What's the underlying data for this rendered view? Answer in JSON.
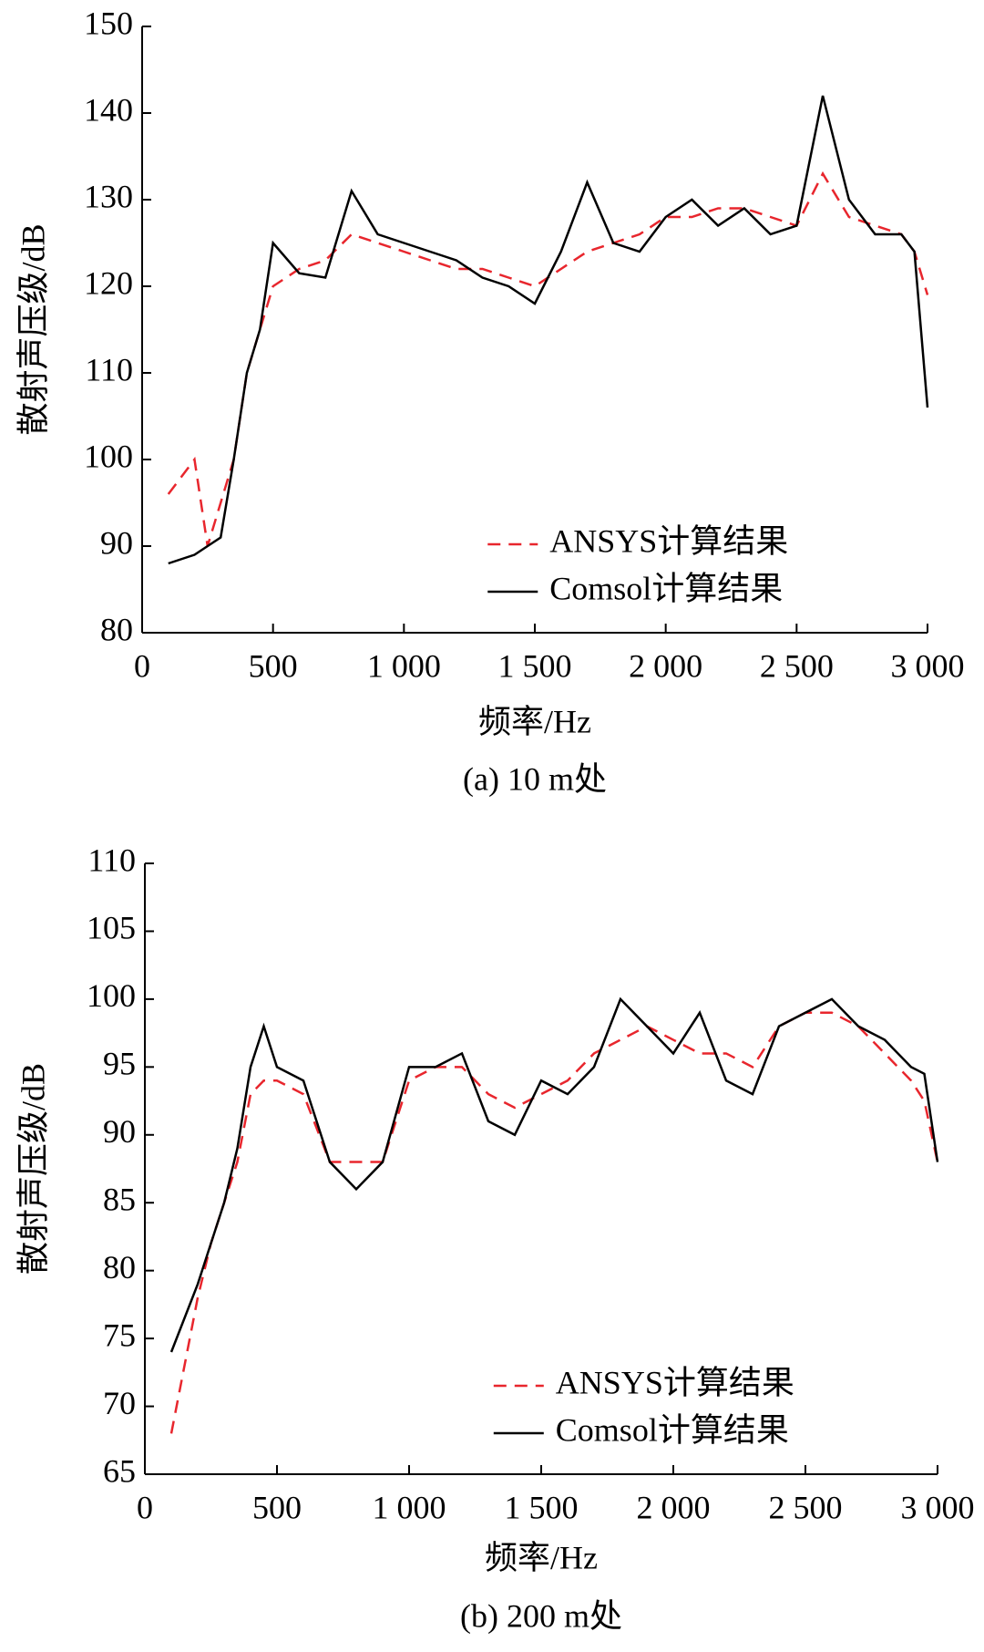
{
  "chart_data": [
    {
      "type": "line",
      "x_label": "频率/Hz",
      "y_label": "散射声压级/dB",
      "caption": "(a) 10 m处",
      "x": [
        100,
        200,
        250,
        300,
        350,
        400,
        450,
        500,
        600,
        700,
        800,
        900,
        1000,
        1100,
        1200,
        1300,
        1400,
        1500,
        1600,
        1700,
        1800,
        1900,
        2000,
        2100,
        2200,
        2300,
        2400,
        2500,
        2600,
        2700,
        2800,
        2900,
        2950,
        3000
      ],
      "series": [
        {
          "name": "ANSYS计算结果",
          "color": "#e8262d",
          "dash": true,
          "values": [
            96,
            100,
            90,
            95,
            100,
            110,
            115,
            120,
            122,
            123,
            126,
            125,
            124,
            123,
            122,
            122,
            121,
            120,
            122,
            124,
            125,
            126,
            128,
            128,
            129,
            129,
            128,
            127,
            133,
            128,
            127,
            126,
            124,
            119
          ]
        },
        {
          "name": "Comsol计算结果",
          "color": "#000000",
          "dash": false,
          "values": [
            88,
            89,
            90,
            91,
            100,
            110,
            115,
            125,
            121.5,
            121,
            131,
            126,
            125,
            124,
            123,
            121,
            120,
            118,
            124,
            132,
            125,
            124,
            128,
            130,
            127,
            129,
            126,
            127,
            142,
            130,
            126,
            126,
            124,
            106
          ]
        }
      ],
      "xlim": [
        0,
        3000
      ],
      "xticks": [
        0,
        500,
        {
          "value": 1000,
          "label": "1 000"
        },
        {
          "value": 1500,
          "label": "1 500"
        },
        {
          "value": 2000,
          "label": "2 000"
        },
        {
          "value": 2500,
          "label": "2 500"
        },
        {
          "value": 3000,
          "label": "3 000"
        }
      ],
      "ylim": [
        80,
        150
      ],
      "yticks": [
        80,
        90,
        100,
        110,
        120,
        130,
        140,
        150
      ],
      "legend": "lower right"
    },
    {
      "type": "line",
      "x_label": "频率/Hz",
      "y_label": "散射声压级/dB",
      "caption": "(b) 200 m处",
      "x": [
        100,
        200,
        250,
        300,
        350,
        400,
        450,
        500,
        600,
        700,
        800,
        900,
        1000,
        1100,
        1200,
        1300,
        1400,
        1500,
        1600,
        1700,
        1800,
        1900,
        2000,
        2100,
        2200,
        2300,
        2400,
        2500,
        2600,
        2700,
        2800,
        2900,
        2950,
        3000
      ],
      "series": [
        {
          "name": "ANSYS计算结果",
          "color": "#e8262d",
          "dash": true,
          "values": [
            68,
            78,
            82,
            85,
            88,
            93,
            94,
            94,
            93,
            88,
            88,
            88,
            94,
            95,
            95,
            93,
            92,
            93,
            94,
            96,
            97,
            98,
            97,
            96,
            96,
            95,
            98,
            99,
            99,
            98,
            96,
            94,
            92.5,
            88
          ]
        },
        {
          "name": "Comsol计算结果",
          "color": "#000000",
          "dash": false,
          "values": [
            74,
            79,
            82,
            85,
            89,
            95,
            98,
            95,
            94,
            88,
            86,
            88,
            95,
            95,
            96,
            91,
            90,
            94,
            93,
            95,
            100,
            98,
            96,
            99,
            94,
            93,
            98,
            99,
            100,
            98,
            97,
            95,
            94.5,
            88
          ]
        }
      ],
      "xlim": [
        0,
        3000
      ],
      "xticks": [
        0,
        500,
        {
          "value": 1000,
          "label": "1 000"
        },
        {
          "value": 1500,
          "label": "1 500"
        },
        {
          "value": 2000,
          "label": "2 000"
        },
        {
          "value": 2500,
          "label": "2 500"
        },
        {
          "value": 3000,
          "label": "3 000"
        }
      ],
      "ylim": [
        65,
        110
      ],
      "yticks": [
        65,
        70,
        75,
        80,
        85,
        90,
        95,
        100,
        105,
        110
      ],
      "legend": "lower right"
    }
  ]
}
